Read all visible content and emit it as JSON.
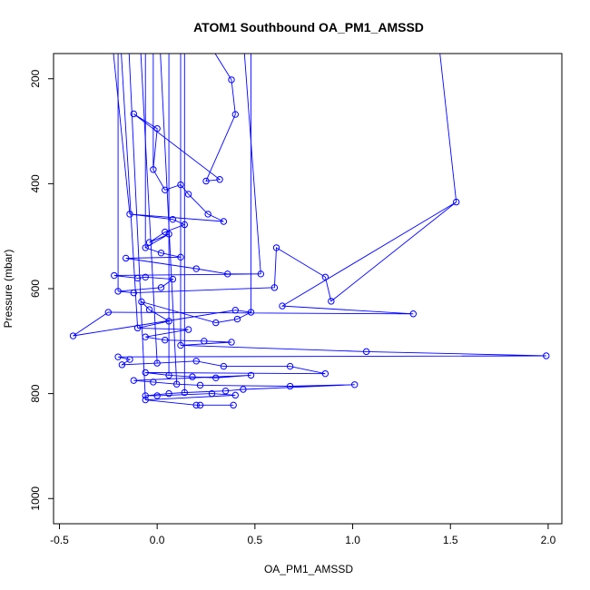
{
  "chart_data": {
    "type": "scatter",
    "title": "ATOM1 Southbound OA_PM1_AMSSD",
    "xlabel": "OA_PM1_AMSSD",
    "ylabel": "Pressure (mbar)",
    "xlim": [
      -0.53,
      2.07
    ],
    "ylim": [
      1048,
      152
    ],
    "y_inverted": true,
    "x_ticks": [
      -0.5,
      0.0,
      0.5,
      1.0,
      1.5,
      2.0
    ],
    "x_tick_labels": [
      "-0.5",
      "0.0",
      "0.5",
      "1.0",
      "1.5",
      "2.0"
    ],
    "y_ticks": [
      200,
      400,
      600,
      800,
      1000
    ],
    "y_tick_labels": [
      "200",
      "400",
      "600",
      "800",
      "1000"
    ],
    "grid": false,
    "series_color": "#0000ff",
    "series": [
      {
        "points": [
          {
            "x": 0.38,
            "y": 202
          },
          {
            "x": 0.4,
            "y": 268
          },
          {
            "x": 0.25,
            "y": 395
          },
          {
            "x": 0.32,
            "y": 392
          },
          {
            "x": -0.12,
            "y": 267
          },
          {
            "x": 0.0,
            "y": 295
          },
          {
            "x": -0.02,
            "y": 373
          },
          {
            "x": 0.04,
            "y": 412
          },
          {
            "x": 0.12,
            "y": 402
          },
          {
            "x": 0.16,
            "y": 420
          },
          {
            "x": 0.26,
            "y": 458
          },
          {
            "x": 0.34,
            "y": 472
          },
          {
            "x": -0.14,
            "y": 458
          },
          {
            "x": 0.08,
            "y": 468
          },
          {
            "x": 0.14,
            "y": 478
          },
          {
            "x": 0.04,
            "y": 492
          },
          {
            "x": -0.04,
            "y": 512
          },
          {
            "x": 0.06,
            "y": 496
          },
          {
            "x": -0.06,
            "y": 522
          },
          {
            "x": 0.02,
            "y": 532
          },
          {
            "x": 0.12,
            "y": 540
          },
          {
            "x": -0.16,
            "y": 542
          },
          {
            "x": 0.2,
            "y": 562
          },
          {
            "x": 0.36,
            "y": 572
          },
          {
            "x": 0.53,
            "y": 572
          },
          {
            "x": -0.22,
            "y": 575
          },
          {
            "x": -0.1,
            "y": 580
          },
          {
            "x": -0.06,
            "y": 578
          },
          {
            "x": 0.08,
            "y": 582
          },
          {
            "x": 0.02,
            "y": 598
          },
          {
            "x": -0.2,
            "y": 605
          },
          {
            "x": -0.12,
            "y": 608
          },
          {
            "x": 0.6,
            "y": 598
          },
          {
            "x": 0.61,
            "y": 522
          },
          {
            "x": 0.86,
            "y": 578
          },
          {
            "x": 0.89,
            "y": 624
          },
          {
            "x": 1.53,
            "y": 435
          },
          {
            "x": 0.64,
            "y": 633
          },
          {
            "x": 1.31,
            "y": 648
          },
          {
            "x": -0.25,
            "y": 645
          },
          {
            "x": -0.43,
            "y": 690
          },
          {
            "x": 0.4,
            "y": 641
          },
          {
            "x": 0.48,
            "y": 645
          },
          {
            "x": 0.41,
            "y": 658
          },
          {
            "x": 0.3,
            "y": 665
          },
          {
            "x": -0.08,
            "y": 625
          },
          {
            "x": -0.04,
            "y": 640
          },
          {
            "x": 0.06,
            "y": 662
          },
          {
            "x": -0.1,
            "y": 675
          },
          {
            "x": 0.16,
            "y": 678
          },
          {
            "x": -0.06,
            "y": 692
          },
          {
            "x": 0.04,
            "y": 698
          },
          {
            "x": 0.24,
            "y": 700
          },
          {
            "x": 0.38,
            "y": 702
          },
          {
            "x": 0.12,
            "y": 708
          },
          {
            "x": 1.07,
            "y": 720
          },
          {
            "x": 1.99,
            "y": 728
          },
          {
            "x": -0.2,
            "y": 730
          },
          {
            "x": -0.14,
            "y": 735
          },
          {
            "x": -0.18,
            "y": 745
          },
          {
            "x": 0.0,
            "y": 742
          },
          {
            "x": 0.2,
            "y": 738
          },
          {
            "x": 0.34,
            "y": 748
          },
          {
            "x": 0.68,
            "y": 748
          },
          {
            "x": 0.86,
            "y": 762
          },
          {
            "x": -0.06,
            "y": 760
          },
          {
            "x": 0.06,
            "y": 765
          },
          {
            "x": 0.18,
            "y": 768
          },
          {
            "x": 0.3,
            "y": 770
          },
          {
            "x": 0.48,
            "y": 765
          },
          {
            "x": -0.12,
            "y": 775
          },
          {
            "x": -0.02,
            "y": 778
          },
          {
            "x": 0.1,
            "y": 782
          },
          {
            "x": 0.22,
            "y": 784
          },
          {
            "x": 0.68,
            "y": 786
          },
          {
            "x": 1.01,
            "y": 783
          },
          {
            "x": 0.44,
            "y": 792
          },
          {
            "x": 0.35,
            "y": 795
          },
          {
            "x": 0.14,
            "y": 798
          },
          {
            "x": 0.06,
            "y": 800
          },
          {
            "x": -0.06,
            "y": 804
          },
          {
            "x": 0.0,
            "y": 804
          },
          {
            "x": 0.28,
            "y": 800
          },
          {
            "x": 0.4,
            "y": 803
          },
          {
            "x": -0.06,
            "y": 812
          },
          {
            "x": 0.2,
            "y": 822
          },
          {
            "x": 0.22,
            "y": 822
          },
          {
            "x": 0.39,
            "y": 822
          }
        ]
      }
    ]
  }
}
